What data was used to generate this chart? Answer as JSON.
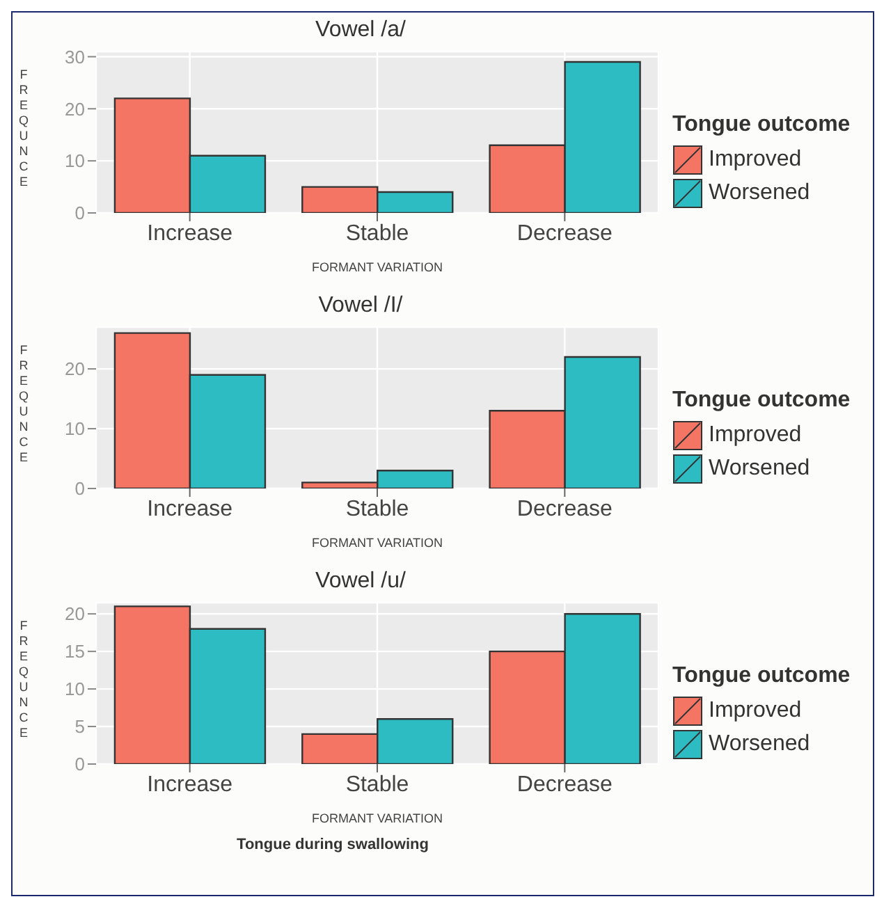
{
  "chart_data": [
    {
      "type": "bar",
      "title": "Vowel /a/",
      "xlabel": "FORMANT VARIATION",
      "ylabel": "FREQUNCE",
      "legend_title": "Tongue outcome",
      "categories": [
        "Increase",
        "Stable",
        "Decrease"
      ],
      "series": [
        {
          "name": "Improved",
          "color": "#f47564",
          "values": [
            22,
            5,
            13
          ]
        },
        {
          "name": "Worsened",
          "color": "#2ebcc3",
          "values": [
            11,
            4,
            29
          ]
        }
      ],
      "ylim": [
        0,
        31
      ],
      "yticks": [
        0,
        10,
        20,
        30
      ],
      "grid": true,
      "legend": "right"
    },
    {
      "type": "bar",
      "title": "Vowel /I/",
      "xlabel": "FORMANT VARIATION",
      "ylabel": "FREQUNCE",
      "legend_title": "Tongue outcome",
      "categories": [
        "Increase",
        "Stable",
        "Decrease"
      ],
      "series": [
        {
          "name": "Improved",
          "color": "#f47564",
          "values": [
            26,
            1,
            13
          ]
        },
        {
          "name": "Worsened",
          "color": "#2ebcc3",
          "values": [
            19,
            3,
            22
          ]
        }
      ],
      "ylim": [
        0,
        27
      ],
      "yticks": [
        0,
        10,
        20
      ],
      "grid": true,
      "legend": "right"
    },
    {
      "type": "bar",
      "title": "Vowel /u/",
      "xlabel": "FORMANT VARIATION",
      "ylabel": "FREQUNCE",
      "legend_title": "Tongue outcome",
      "categories": [
        "Increase",
        "Stable",
        "Decrease"
      ],
      "series": [
        {
          "name": "Improved",
          "color": "#f47564",
          "values": [
            21,
            4,
            15
          ]
        },
        {
          "name": "Worsened",
          "color": "#2ebcc3",
          "values": [
            18,
            6,
            20
          ]
        }
      ],
      "ylim": [
        0,
        21.5
      ],
      "yticks": [
        0,
        5,
        10,
        15,
        20
      ],
      "grid": true,
      "legend": "right",
      "annotations": [
        "Tongue during swallowing"
      ]
    }
  ]
}
